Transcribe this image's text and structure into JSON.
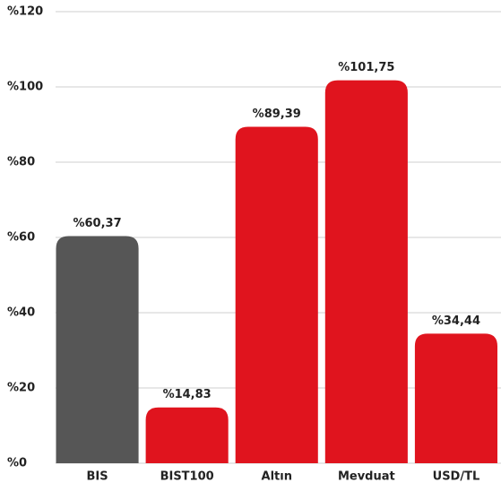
{
  "chart_data": {
    "type": "bar",
    "categories": [
      "BIS",
      "BIST100",
      "Altın",
      "Mevduat",
      "USD/TL"
    ],
    "values": [
      60.37,
      14.83,
      89.39,
      101.75,
      34.44
    ],
    "value_labels": [
      "%60,37",
      "%14,83",
      "%89,39",
      "%101,75",
      "%34,44"
    ],
    "colors": [
      "#565656",
      "#e0141e",
      "#e0141e",
      "#e0141e",
      "#e0141e"
    ],
    "ylim": [
      0,
      120
    ],
    "yticks": [
      {
        "value": 0,
        "label": "%0"
      },
      {
        "value": 20,
        "label": "%20"
      },
      {
        "value": 40,
        "label": "%40"
      },
      {
        "value": 60,
        "label": "%60"
      },
      {
        "value": 80,
        "label": "%80"
      },
      {
        "value": 100,
        "label": "%100"
      },
      {
        "value": 120,
        "label": "%120"
      }
    ],
    "grid": true
  }
}
